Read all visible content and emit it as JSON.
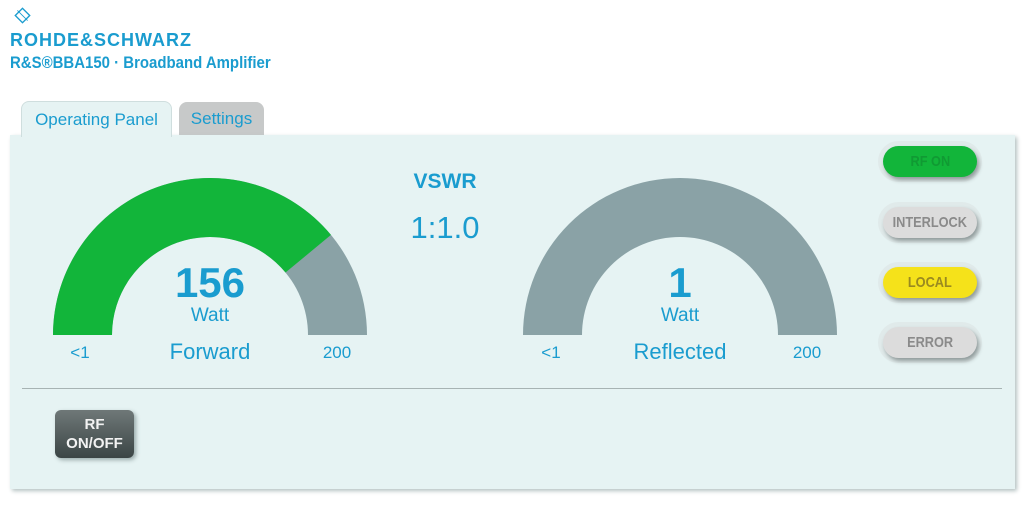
{
  "header": {
    "brand": "ROHDE&SCHWARZ",
    "product": "R&S®BBA150 · Broadband Amplifier",
    "logo_text": "R&S"
  },
  "tabs": [
    {
      "label": "Operating Panel",
      "active": true
    },
    {
      "label": "Settings",
      "active": false
    }
  ],
  "vswr": {
    "label": "VSWR",
    "value": "1:1.0"
  },
  "forward": {
    "value": "156",
    "unit": "Watt",
    "label": "Forward",
    "min_label": "<1",
    "max_label": "200",
    "level": 156,
    "max": 200
  },
  "reflected": {
    "value": "1",
    "unit": "Watt",
    "label": "Reflected",
    "min_label": "<1",
    "max_label": "200",
    "level": 1,
    "max": 200
  },
  "status": [
    {
      "label": "RF ON",
      "bg": "#12b53a",
      "fg": "#109a33"
    },
    {
      "label": "INTERLOCK",
      "bg": "#dcdcdc",
      "fg": "#8a8a8a"
    },
    {
      "label": "LOCAL",
      "bg": "#f5e21a",
      "fg": "#9a8a20"
    },
    {
      "label": "ERROR",
      "bg": "#dcdcdc",
      "fg": "#8a8a8a"
    }
  ],
  "rf_button": {
    "line1": "RF",
    "line2": "ON/OFF"
  },
  "colors": {
    "accent": "#1a9ccf",
    "gauge_fill": "#12b53a",
    "gauge_track": "#8aa2a6"
  }
}
